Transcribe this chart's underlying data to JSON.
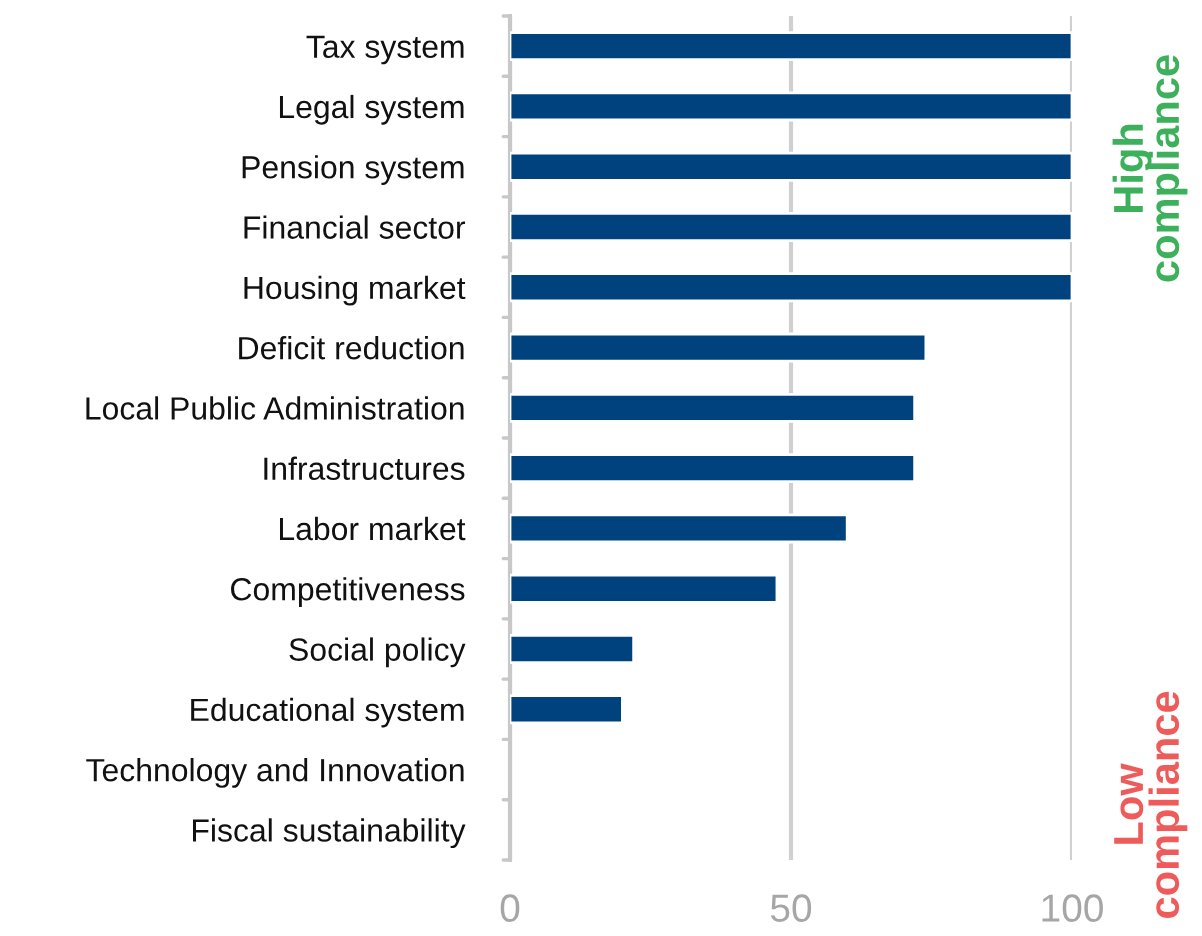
{
  "chart_data": {
    "type": "bar",
    "orientation": "horizontal",
    "categories": [
      "Tax system",
      "Legal system",
      "Pension system",
      "Financial sector",
      "Housing market",
      "Deficit reduction",
      "Local Public Administration",
      "Infrastructures",
      "Labor market",
      "Competitiveness",
      "Social policy",
      "Educational system",
      "Technology and Innovation",
      "Fiscal sustainability"
    ],
    "values": [
      100,
      100,
      100,
      100,
      100,
      74,
      72,
      72,
      60,
      47.5,
      22,
      20,
      null,
      null
    ],
    "color": "#00427e",
    "xlim": [
      0,
      100
    ],
    "xticks": [
      0,
      50,
      100
    ],
    "grid": "x",
    "annotations": [
      "High\ncompliance",
      "Low\ncompliance"
    ]
  }
}
